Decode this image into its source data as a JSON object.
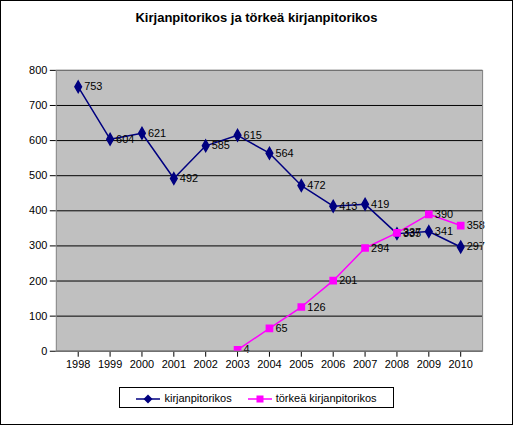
{
  "chart_data": {
    "type": "line",
    "title": "Kirjanpitorikos ja törkeä kirjanpitorikos",
    "categories": [
      "1998",
      "1999",
      "2000",
      "2001",
      "2002",
      "2003",
      "2004",
      "2005",
      "2006",
      "2007",
      "2008",
      "2009",
      "2010"
    ],
    "series": [
      {
        "name": "kirjanpitorikos",
        "color": "#000080",
        "marker": "diamond",
        "values": [
          753,
          604,
          621,
          492,
          585,
          615,
          564,
          472,
          413,
          419,
          335,
          341,
          297
        ]
      },
      {
        "name": "törkeä kirjanpitorikos",
        "color": "#FF00FF",
        "marker": "square",
        "values": [
          null,
          null,
          null,
          null,
          null,
          4,
          65,
          126,
          201,
          294,
          337,
          390,
          358
        ]
      }
    ],
    "ylim": [
      0,
      800
    ],
    "yticks": [
      0,
      100,
      200,
      300,
      400,
      500,
      600,
      700,
      800
    ],
    "grid": true,
    "legend": "bottom",
    "data_labels": true
  }
}
